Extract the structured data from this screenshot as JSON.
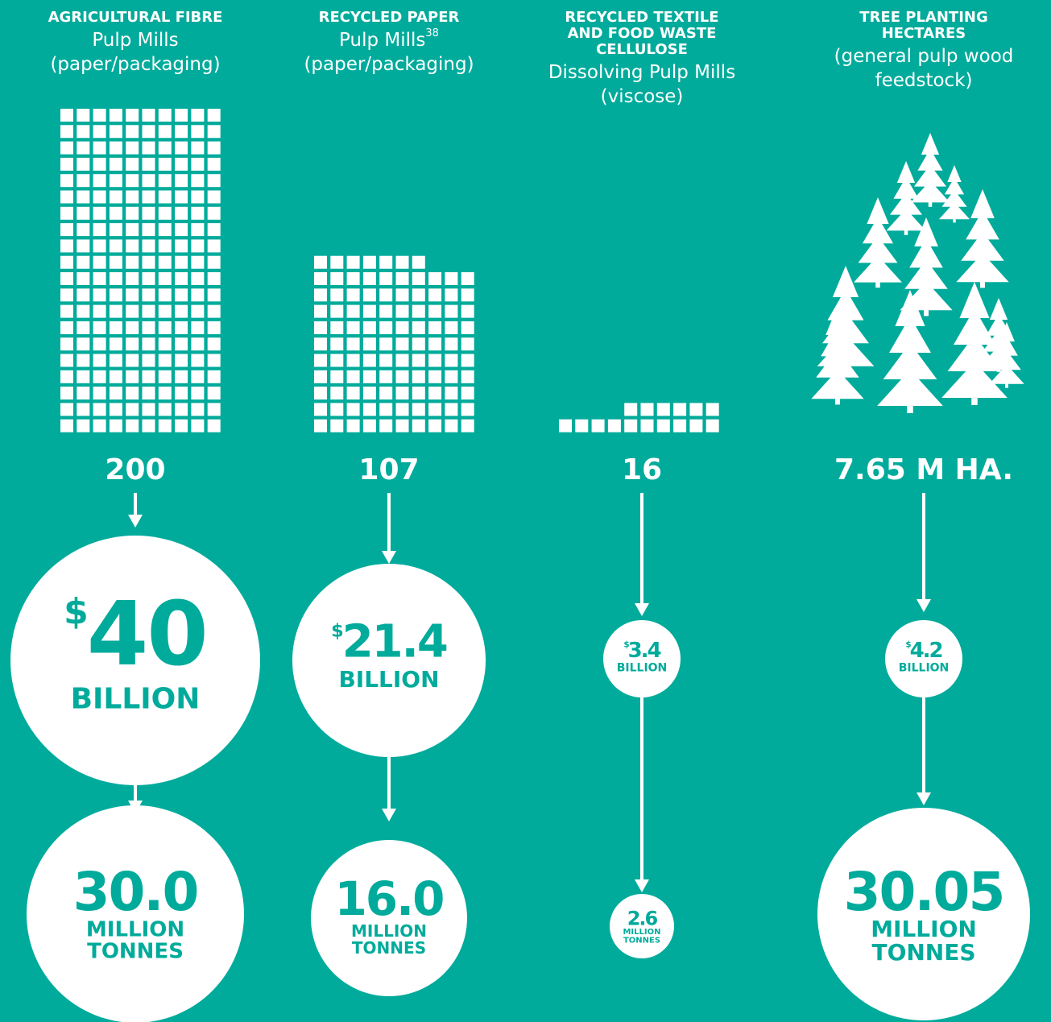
{
  "columns": [
    {
      "title": [
        "AGRICULTURAL FIBRE"
      ],
      "subtitle": [
        "Pulp Mills",
        "(paper/packaging)"
      ],
      "count": 200,
      "value": {
        "currency": "$",
        "amount": "40",
        "unit": "BILLION"
      },
      "tonnes": {
        "amount": "30.0",
        "unit": [
          "MILLION",
          "TONNES"
        ]
      }
    },
    {
      "title": [
        "RECYCLED PAPER"
      ],
      "subtitle": [
        "Pulp Mills",
        "(paper/packaging)"
      ],
      "footnote": "38",
      "count": 107,
      "value": {
        "currency": "$",
        "amount": "21.4",
        "unit": "BILLION"
      },
      "tonnes": {
        "amount": "16.0",
        "unit": [
          "MILLION",
          "TONNES"
        ]
      }
    },
    {
      "title": [
        "RECYCLED TEXTILE",
        "AND FOOD WASTE",
        "CELLULOSE"
      ],
      "subtitle": [
        "Dissolving Pulp Mills",
        "(viscose)"
      ],
      "count": 16,
      "value": {
        "currency": "$",
        "amount": "3.4",
        "unit": "BILLION"
      },
      "tonnes": {
        "amount": "2.6",
        "unit": [
          "MILLION",
          "TONNES"
        ]
      }
    },
    {
      "title": [
        "TREE PLANTING",
        "HECTARES"
      ],
      "subtitle": [
        "(general pulp wood",
        "feedstock)"
      ],
      "count": "7.65 M HA.",
      "value": {
        "currency": "$",
        "amount": "4.2",
        "unit": "BILLION"
      },
      "tonnes": {
        "amount": "30.05",
        "unit": [
          "MILLION",
          "TONNES"
        ]
      }
    }
  ]
}
